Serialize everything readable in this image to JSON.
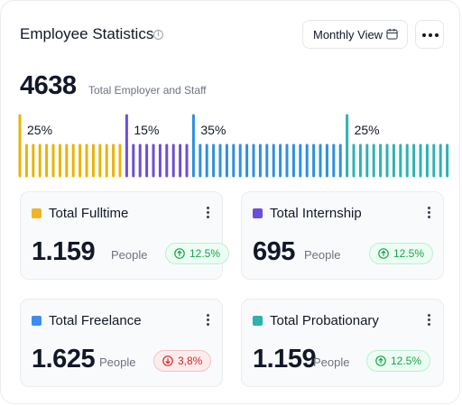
{
  "header": {
    "title": "Employee Statistics",
    "view_label": "Monthly View"
  },
  "summary": {
    "total": "4638",
    "total_label": "Total Employer and Staff"
  },
  "distribution": [
    {
      "label": "25%",
      "share": 0.25,
      "color": "#eab308"
    },
    {
      "label": "15%",
      "share": 0.15,
      "color": "#6d4ed6"
    },
    {
      "label": "35%",
      "share": 0.35,
      "color": "#2f8fe0"
    },
    {
      "label": "25%",
      "share": 0.25,
      "color": "#2cb3b0"
    }
  ],
  "cards": [
    {
      "name": "Total Fulltime",
      "value": "1.159",
      "unit": "People",
      "change": "12.5%",
      "trend": "up",
      "color": "#f0b429"
    },
    {
      "name": "Total Internship",
      "value": "695",
      "unit": "People",
      "change": "12.5%",
      "trend": "up",
      "color": "#6d4ed6"
    },
    {
      "name": "Total Freelance",
      "value": "1.625",
      "unit": "People",
      "change": "3,8%",
      "trend": "down",
      "color": "#3b8ef0"
    },
    {
      "name": "Total Probationary",
      "value": "1.159",
      "unit": "People",
      "change": "12.5%",
      "trend": "up",
      "color": "#2cb3b0"
    }
  ]
}
